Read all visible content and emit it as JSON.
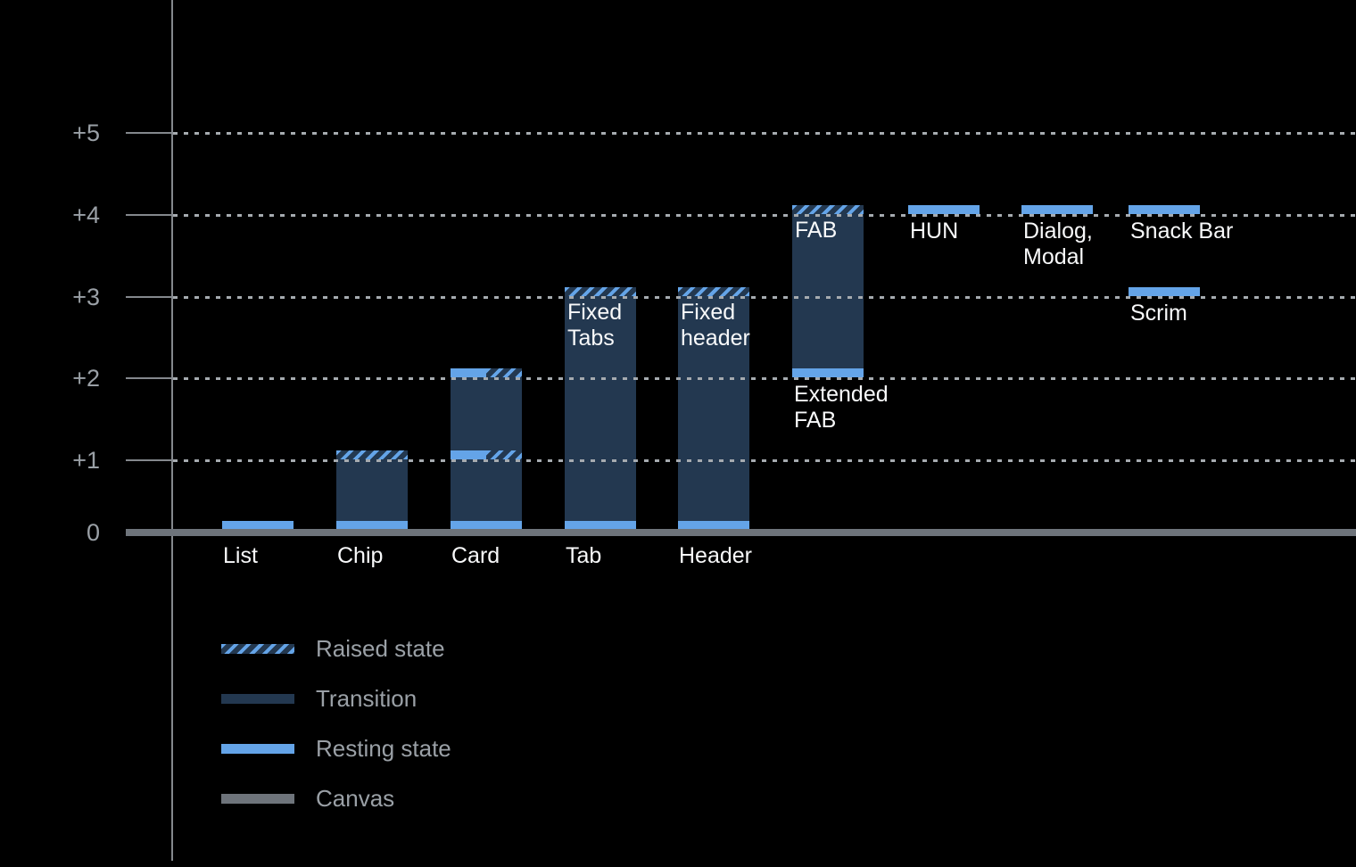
{
  "colors": {
    "background": "#000000",
    "resting_blue": "#64A4E8",
    "transition_navy": "#233850",
    "canvas_gray": "#6E747B",
    "axis_gray": "#84888D",
    "grid_dot_gray": "#A6ABB0",
    "tick_text_gray": "#9AA0A6",
    "bar_label_white": "#F8F9FA"
  },
  "chart_data": {
    "type": "bar",
    "title": "",
    "xlabel": "",
    "ylabel": "",
    "ylim": [
      0,
      5.5
    ],
    "grid": "dotted horizontal lines at +1..+5, solid canvas baseline at 0",
    "legend_position": "bottom-left",
    "y_ticks": [
      {
        "level": 5,
        "label": "+5"
      },
      {
        "level": 4,
        "label": "+4"
      },
      {
        "level": 3,
        "label": "+3"
      },
      {
        "level": 2,
        "label": "+2"
      },
      {
        "level": 1,
        "label": "+1"
      },
      {
        "level": 0,
        "label": "0"
      }
    ],
    "columns": [
      {
        "name": "List",
        "segments": [
          {
            "type": "ground"
          }
        ],
        "labels": [
          {
            "text": "List",
            "slot": "below-baseline"
          }
        ]
      },
      {
        "name": "Chip",
        "segments": [
          {
            "type": "ground"
          },
          {
            "type": "fill",
            "from": 0,
            "to": 1
          },
          {
            "type": "band",
            "level": 1,
            "style": "raised"
          }
        ],
        "labels": [
          {
            "text": "Chip",
            "slot": "below-baseline"
          }
        ]
      },
      {
        "name": "Card",
        "segments": [
          {
            "type": "ground"
          },
          {
            "type": "fill",
            "from": 0,
            "to": 2
          },
          {
            "type": "band",
            "level": 1,
            "style": "split"
          },
          {
            "type": "band",
            "level": 2,
            "style": "split"
          }
        ],
        "labels": [
          {
            "text": "Card",
            "slot": "below-baseline"
          }
        ]
      },
      {
        "name": "Tab",
        "segments": [
          {
            "type": "ground"
          },
          {
            "type": "fill",
            "from": 0,
            "to": 3
          },
          {
            "type": "band",
            "level": 3,
            "style": "raised"
          }
        ],
        "labels": [
          {
            "text": "Tab",
            "slot": "below-baseline"
          },
          {
            "text": "Fixed\nTabs",
            "slot": "inside-top",
            "at_level": 3
          }
        ]
      },
      {
        "name": "Header",
        "segments": [
          {
            "type": "ground"
          },
          {
            "type": "fill",
            "from": 0,
            "to": 3
          },
          {
            "type": "band",
            "level": 3,
            "style": "raised"
          }
        ],
        "labels": [
          {
            "text": "Header",
            "slot": "below-baseline"
          },
          {
            "text": "Fixed\nheader",
            "slot": "inside-top",
            "at_level": 3
          }
        ]
      },
      {
        "name": "Extended FAB",
        "segments": [
          {
            "type": "band",
            "level": 2,
            "style": "resting"
          },
          {
            "type": "fill",
            "from": 2,
            "to": 4
          },
          {
            "type": "band",
            "level": 4,
            "style": "raised"
          }
        ],
        "labels": [
          {
            "text": "FAB",
            "slot": "inside-top",
            "at_level": 4
          },
          {
            "text": "Extended\nFAB",
            "slot": "below-level",
            "at_level": 2
          }
        ]
      },
      {
        "name": "HUN",
        "segments": [
          {
            "type": "band",
            "level": 4,
            "style": "resting"
          }
        ],
        "labels": [
          {
            "text": "HUN",
            "slot": "below-level",
            "at_level": 4
          }
        ]
      },
      {
        "name": "Dialog, Modal",
        "segments": [
          {
            "type": "band",
            "level": 4,
            "style": "resting"
          }
        ],
        "labels": [
          {
            "text": "Dialog,\nModal",
            "slot": "below-level",
            "at_level": 4
          }
        ]
      },
      {
        "name": "Snack Bar",
        "segments": [
          {
            "type": "band",
            "level": 4,
            "style": "resting"
          }
        ],
        "labels": [
          {
            "text": "Snack Bar",
            "slot": "below-level",
            "at_level": 4
          }
        ]
      },
      {
        "name": "Scrim",
        "col": 8,
        "segments": [
          {
            "type": "band",
            "level": 3,
            "style": "resting"
          }
        ],
        "labels": [
          {
            "text": "Scrim",
            "slot": "below-level",
            "at_level": 3
          }
        ]
      }
    ],
    "legend": [
      {
        "swatch": "raised",
        "label": "Raised state"
      },
      {
        "swatch": "transition",
        "label": "Transition"
      },
      {
        "swatch": "resting",
        "label": "Resting state"
      },
      {
        "swatch": "canvas",
        "label": "Canvas"
      }
    ]
  }
}
